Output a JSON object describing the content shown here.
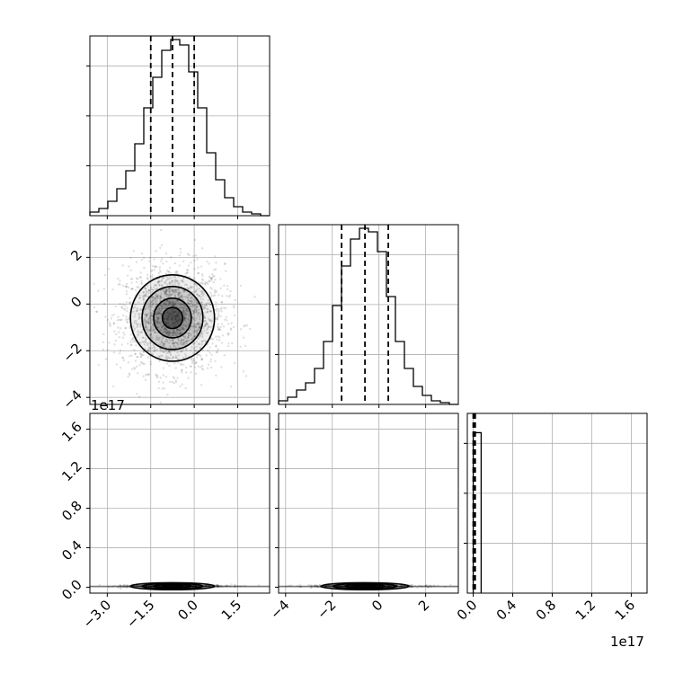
{
  "chart_data": {
    "type": "corner",
    "offset_label": "1e17",
    "parameters": [
      {
        "range": [
          -3.6,
          2.6
        ],
        "ticks": [
          -3.0,
          -1.5,
          0.0,
          1.5
        ],
        "tick_labels": [
          "−3.0",
          "−1.5",
          "0.0",
          "1.5"
        ]
      },
      {
        "range": [
          -4.3,
          3.4
        ],
        "ticks": [
          -4,
          -2,
          0,
          2
        ],
        "tick_labels": [
          "−4",
          "−2",
          "0",
          "2"
        ]
      },
      {
        "range": [
          -0.06,
          1.76
        ],
        "ticks": [
          0.0,
          0.4,
          0.8,
          1.2,
          1.6
        ],
        "tick_labels": [
          "0.0",
          "0.4",
          "0.8",
          "1.2",
          "1.6"
        ]
      }
    ],
    "histograms": [
      {
        "param": 0,
        "bin_edges": [
          -3.6,
          -3.29,
          -2.98,
          -2.67,
          -2.36,
          -2.05,
          -1.74,
          -1.43,
          -1.12,
          -0.81,
          -0.5,
          -0.19,
          0.12,
          0.43,
          0.74,
          1.05,
          1.36,
          1.67,
          1.98,
          2.29,
          2.6
        ],
        "counts": [
          2,
          4,
          8,
          15,
          25,
          40,
          60,
          77,
          92,
          98,
          95,
          80,
          60,
          35,
          20,
          10,
          5,
          2,
          1,
          0
        ],
        "max": 100,
        "quantiles": [
          -1.5,
          -0.75,
          0.0
        ]
      },
      {
        "param": 1,
        "bin_edges": [
          -4.3,
          -3.915,
          -3.53,
          -3.145,
          -2.76,
          -2.375,
          -1.99,
          -1.605,
          -1.22,
          -0.835,
          -0.45,
          -0.065,
          0.32,
          0.705,
          1.09,
          1.475,
          1.86,
          2.245,
          2.63,
          3.015,
          3.4
        ],
        "counts": [
          2,
          4,
          8,
          12,
          20,
          35,
          55,
          77,
          92,
          98,
          96,
          85,
          60,
          35,
          20,
          10,
          5,
          2,
          1,
          0
        ],
        "max": 100,
        "quantiles": [
          -1.6,
          -0.6,
          0.4
        ]
      },
      {
        "param": 2,
        "bin_edges": [
          0.0,
          0.08
        ],
        "counts": [
          1
        ],
        "max": 1.12,
        "quantiles": [
          0.0,
          0.01,
          0.02
        ]
      }
    ],
    "contours_2d": {
      "p1_vs_p0": {
        "center": [
          -0.75,
          -0.6
        ],
        "radii_x": [
          0.35,
          0.65,
          1.05,
          1.45
        ],
        "radii_y": [
          0.45,
          0.85,
          1.35,
          1.85
        ]
      },
      "p2_vs_p0": {
        "center": [
          -0.75,
          0.01
        ]
      },
      "p2_vs_p1": {
        "center": [
          -0.6,
          0.01
        ]
      }
    }
  }
}
